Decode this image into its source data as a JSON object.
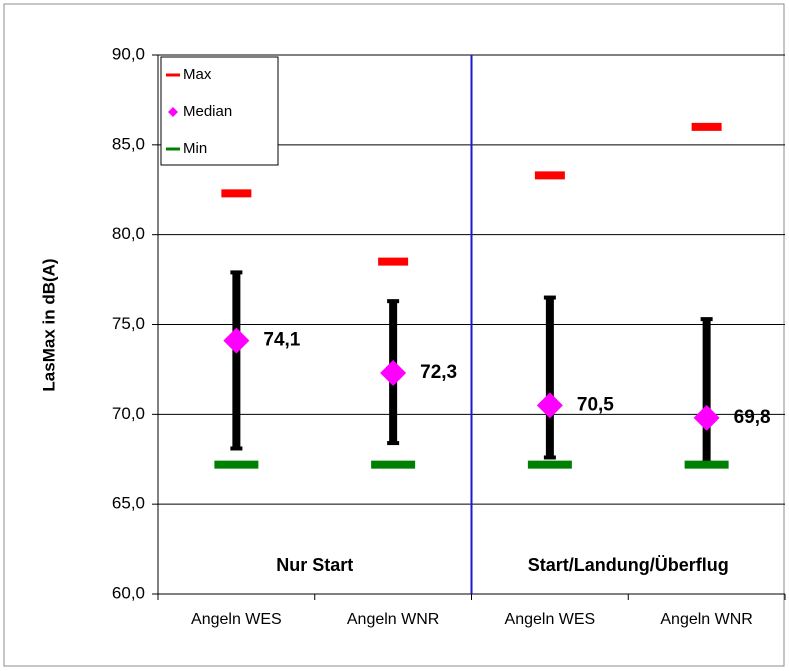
{
  "chart_data": {
    "type": "range",
    "ylabel": "LasMax in dB(A)",
    "ylim": [
      60,
      90
    ],
    "yticks": [
      {
        "value": 60,
        "label": "60,0"
      },
      {
        "value": 65,
        "label": "65,0"
      },
      {
        "value": 70,
        "label": "70,0"
      },
      {
        "value": 75,
        "label": "75,0"
      },
      {
        "value": 80,
        "label": "80,0"
      },
      {
        "value": 85,
        "label": "85,0"
      },
      {
        "value": 90,
        "label": "90,0"
      }
    ],
    "grid": true,
    "categories": [
      "Angeln WES",
      "Angeln WNR",
      "Angeln WES",
      "Angeln WNR"
    ],
    "series": [
      {
        "name": "Max",
        "color": "#ff0000",
        "values": [
          82.3,
          78.5,
          83.3,
          86.0
        ]
      },
      {
        "name": "Median",
        "color": "#ff00ff",
        "values": [
          74.1,
          72.3,
          70.5,
          69.8
        ],
        "value_labels": [
          "74,1",
          "72,3",
          "70,5",
          "69,8"
        ]
      },
      {
        "name": "Min",
        "color": "#008000",
        "values": [
          67.2,
          67.2,
          67.2,
          67.2
        ]
      }
    ],
    "whiskers": {
      "color": "#000000",
      "low": [
        68.1,
        68.4,
        67.6,
        67.3
      ],
      "high": [
        77.9,
        76.3,
        76.5,
        75.3
      ]
    },
    "groups": {
      "color": "#1a1ad0",
      "labels": [
        "Nur Start",
        "Start/Landung/Überflug"
      ]
    },
    "legend": "upper left"
  }
}
